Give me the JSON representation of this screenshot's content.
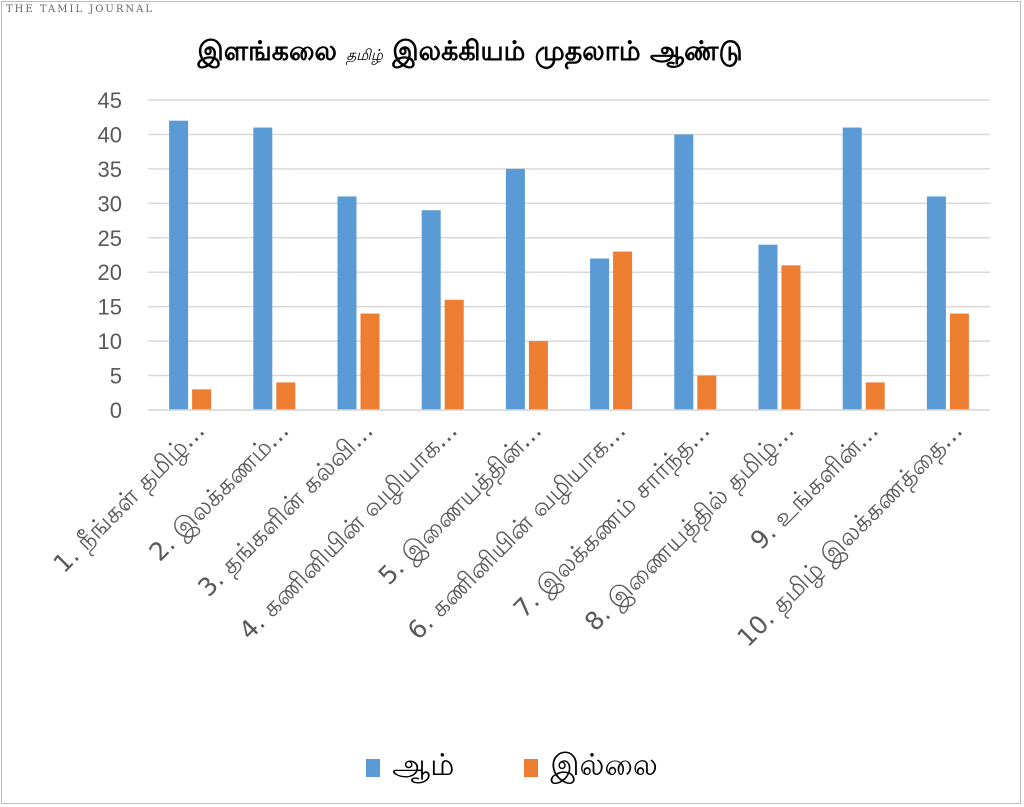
{
  "logo_text": "THE TAMIL JOURNAL",
  "title_part1": "இளங்கலை",
  "title_part2": "தமிழ்",
  "title_part3": "இலக்கியம் முதலாம் ஆண்டு",
  "colors": {
    "series1": "#5b9bd5",
    "series2": "#ed7d31",
    "grid": "#d9d9d9",
    "axis_text": "#595959"
  },
  "chart_data": {
    "type": "bar",
    "title": "இளங்கலை தமிழ் இலக்கியம் முதலாம் ஆண்டு",
    "categories": [
      "1. நீங்கள் தமிழ்...",
      "2. இலக்கணம்...",
      "3. தங்களின் கல்வி...",
      "4. கணினியின் வழியாக...",
      "5. இணையத்தின்...",
      "6. கணினியின் வழியாக...",
      "7. இலக்கணம் சார்ந்த...",
      "8. இணையத்தில் தமிழ்...",
      "9. உங்களின்...",
      "10. தமிழ் இலக்கணத்தை..."
    ],
    "series": [
      {
        "name": "ஆம்",
        "values": [
          42,
          41,
          31,
          29,
          35,
          22,
          40,
          24,
          41,
          31
        ]
      },
      {
        "name": "இல்லை",
        "values": [
          3,
          4,
          14,
          16,
          10,
          23,
          5,
          21,
          4,
          14
        ]
      }
    ],
    "ylim": [
      0,
      45
    ],
    "yticks": [
      "0",
      "5",
      "10",
      "15",
      "20",
      "25",
      "30",
      "35",
      "40",
      "45"
    ],
    "grid": true,
    "legend": "bottom"
  }
}
